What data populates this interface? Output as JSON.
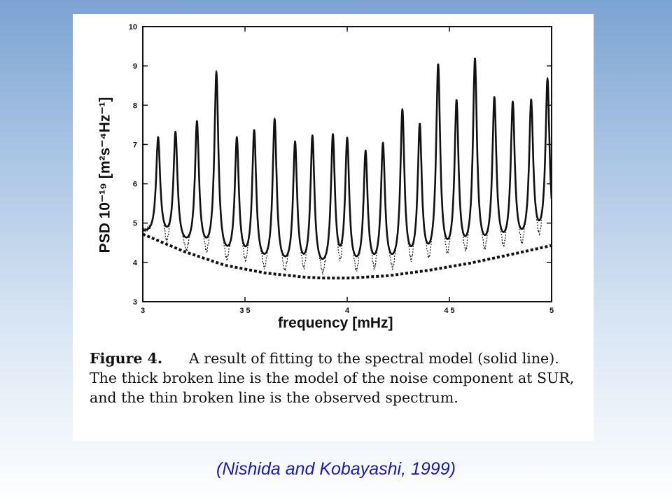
{
  "citation": "(Nishida and Kobayashi, 1999)",
  "caption": {
    "figure_label": "Figure 4.",
    "text": "A result of fitting to the spectral model (solid line). The thick broken line is the model of the noise component at SUR, and the thin broken line is the observed spectrum."
  },
  "chart_data": {
    "type": "line",
    "xlabel": "frequency [mHz]",
    "ylabel": "PSD 10⁻¹⁹ [m²s⁻⁴Hz⁻¹]",
    "xlim": [
      3,
      5
    ],
    "ylim": [
      3,
      10
    ],
    "x_ticks": [
      {
        "value": 3,
        "label": "3"
      },
      {
        "value": 3.5,
        "label": "3 5"
      },
      {
        "value": 4,
        "label": "4"
      },
      {
        "value": 4.5,
        "label": "4 5"
      },
      {
        "value": 5,
        "label": "5"
      }
    ],
    "y_ticks": [
      {
        "value": 3,
        "label": "3"
      },
      {
        "value": 4,
        "label": "4"
      },
      {
        "value": 5,
        "label": "5"
      },
      {
        "value": 6,
        "label": "6"
      },
      {
        "value": 7,
        "label": "7"
      },
      {
        "value": 8,
        "label": "8"
      },
      {
        "value": 9,
        "label": "9"
      },
      {
        "value": 10,
        "label": "10"
      }
    ],
    "grid": false,
    "peak_width_mHz": 0.012,
    "peaks": [
      {
        "x": 3.075,
        "y": 7.1
      },
      {
        "x": 3.16,
        "y": 7.2
      },
      {
        "x": 3.265,
        "y": 7.45
      },
      {
        "x": 3.36,
        "y": 8.7
      },
      {
        "x": 3.46,
        "y": 7.0
      },
      {
        "x": 3.545,
        "y": 7.2
      },
      {
        "x": 3.645,
        "y": 7.5
      },
      {
        "x": 3.745,
        "y": 6.9
      },
      {
        "x": 3.83,
        "y": 7.05
      },
      {
        "x": 3.93,
        "y": 7.05
      },
      {
        "x": 4.0,
        "y": 6.95
      },
      {
        "x": 4.09,
        "y": 6.65
      },
      {
        "x": 4.175,
        "y": 6.85
      },
      {
        "x": 4.27,
        "y": 7.7
      },
      {
        "x": 4.355,
        "y": 7.3
      },
      {
        "x": 4.445,
        "y": 8.85
      },
      {
        "x": 4.535,
        "y": 7.9
      },
      {
        "x": 4.625,
        "y": 9.0
      },
      {
        "x": 4.72,
        "y": 8.0
      },
      {
        "x": 4.81,
        "y": 7.9
      },
      {
        "x": 4.9,
        "y": 7.95
      },
      {
        "x": 4.98,
        "y": 8.55
      }
    ],
    "noise_model": {
      "name": "thick broken line (noise model)",
      "x": [
        3.0,
        3.2,
        3.4,
        3.6,
        3.8,
        3.9,
        4.0,
        4.2,
        4.4,
        4.6,
        4.8,
        5.0
      ],
      "y": [
        4.72,
        4.28,
        3.93,
        3.73,
        3.62,
        3.6,
        3.6,
        3.66,
        3.8,
        3.98,
        4.2,
        4.43
      ]
    },
    "series": [
      {
        "name": "solid line (spectral model fit)"
      },
      {
        "name": "thin broken line (observed spectrum)"
      }
    ]
  }
}
